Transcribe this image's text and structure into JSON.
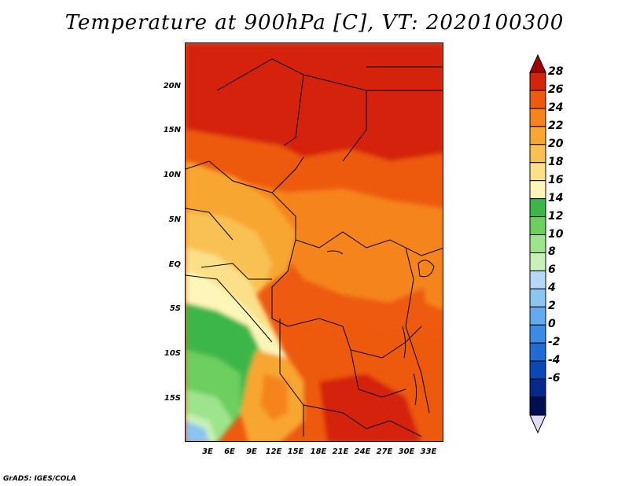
{
  "title": "Temperature at 900hPa [C], VT: 2020100300",
  "map": {
    "lat_labels": [
      "20N",
      "15N",
      "10N",
      "5N",
      "EQ",
      "5S",
      "10S",
      "15S"
    ],
    "lon_labels": [
      "3E",
      "6E",
      "9E",
      "12E",
      "15E",
      "18E",
      "21E",
      "24E",
      "27E",
      "30E",
      "33E"
    ]
  },
  "colorbar": {
    "labels": [
      "28",
      "26",
      "24",
      "22",
      "20",
      "18",
      "16",
      "14",
      "12",
      "10",
      "8",
      "6",
      "4",
      "2",
      "0",
      "-2",
      "-4",
      "-6"
    ],
    "colors": [
      "#a50000",
      "#d4240b",
      "#ee5a10",
      "#f5841e",
      "#f8a630",
      "#f9c153",
      "#fbe089",
      "#fdf6b8",
      "#3cb649",
      "#6ccf5e",
      "#9ee48c",
      "#c8f1b8",
      "#b5d8f7",
      "#8cc5f2",
      "#63aaf0",
      "#3c8be6",
      "#1f6cd5",
      "#0a48b8",
      "#062a8c",
      "#010f52",
      "#e0dcf7"
    ]
  },
  "footer": "GrADS: IGES/COLA"
}
